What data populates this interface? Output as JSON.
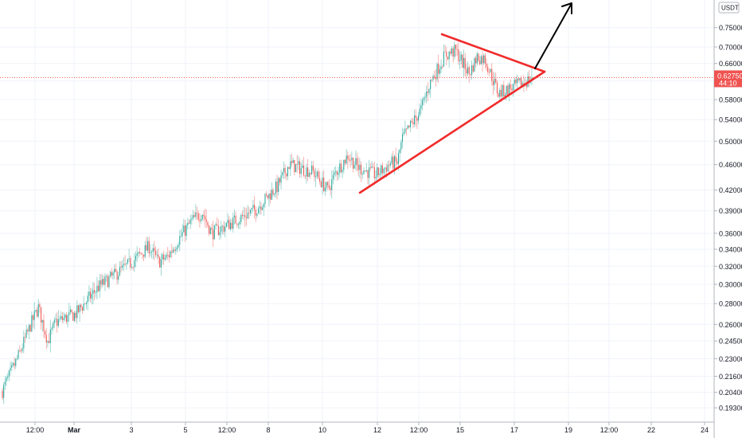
{
  "chart_data": {
    "type": "candlestick",
    "symbol_quote": "USDT",
    "price_scale": "log",
    "ylim": [
      0.185,
      0.8
    ],
    "y_ticks": [
      "0.75000",
      "0.70000",
      "0.66000",
      "0.62000",
      "0.58000",
      "0.54000",
      "0.50000",
      "0.46000",
      "0.42000",
      "0.39000",
      "0.36000",
      "0.34000",
      "0.32000",
      "0.30000",
      "0.28000",
      "0.26000",
      "0.24500",
      "0.23000",
      "0.21600",
      "0.20400",
      "0.19300"
    ],
    "x_ticks": [
      "12:00",
      "Mar",
      "3",
      "5",
      "12:00",
      "8",
      "10",
      "12",
      "12:00",
      "15",
      "17",
      "19",
      "12:00",
      "22",
      "24"
    ],
    "last_price": {
      "value": "0.62750",
      "countdown": "44:10"
    },
    "grid": true,
    "candles_visible_range": [
      "12:00",
      "17"
    ],
    "colors": {
      "up": "#26a69a",
      "down": "#ef5350",
      "pattern": "#f12b2b",
      "arrow": "#000000",
      "price_line": "#ef5350"
    },
    "pattern": {
      "type": "triangle",
      "direction": "breakout-up"
    }
  }
}
